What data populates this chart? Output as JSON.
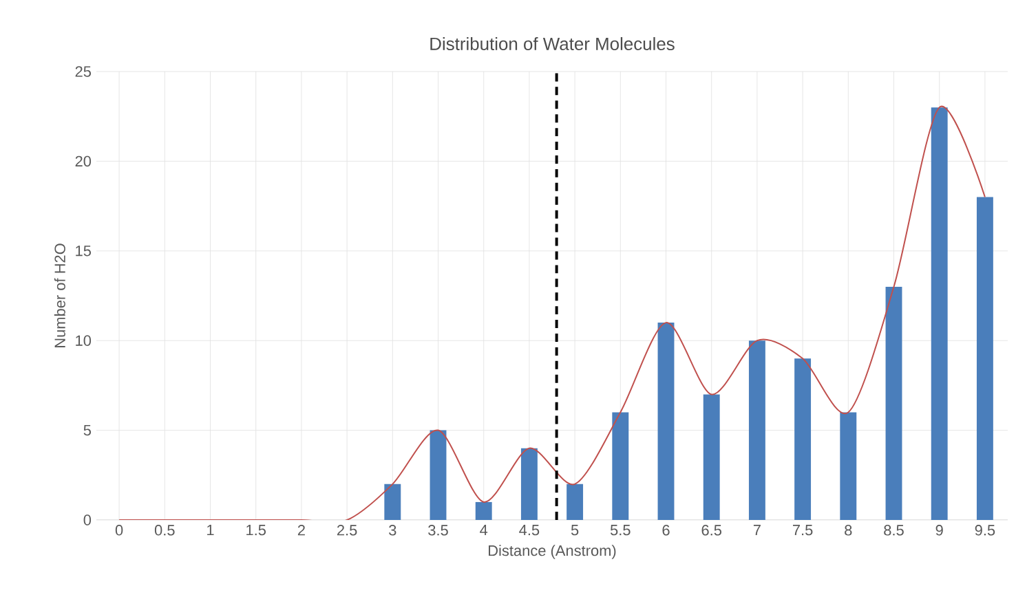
{
  "chart_data": {
    "type": "bar",
    "title": "Distribution of Water Molecules",
    "xlabel": "Distance (Anstrom)",
    "ylabel": "Number of H2O",
    "x": [
      0,
      0.5,
      1,
      1.5,
      2,
      2.5,
      3,
      3.5,
      4,
      4.5,
      5,
      5.5,
      6,
      6.5,
      7,
      7.5,
      8,
      8.5,
      9,
      9.5
    ],
    "series": [
      {
        "color": "#4a7ebb",
        "values": [
          0,
          0,
          0,
          0,
          0,
          0,
          2,
          5,
          1,
          4,
          2,
          6,
          11,
          7,
          10,
          9,
          6,
          13,
          23,
          18
        ]
      },
      {
        "type": "line",
        "color": "#c0504d",
        "values": [
          0,
          0,
          0,
          0,
          0,
          0,
          2,
          5,
          1,
          4,
          2,
          6,
          11,
          7,
          10,
          9,
          6,
          13,
          23,
          18
        ]
      }
    ],
    "xlim": [
      -0.25,
      9.75
    ],
    "xticks": [
      0,
      0.5,
      1,
      1.5,
      2,
      2.5,
      3,
      3.5,
      4,
      4.5,
      5,
      5.5,
      6,
      6.5,
      7,
      7.5,
      8,
      8.5,
      9,
      9.5
    ],
    "ylim": [
      0,
      25
    ],
    "yticks": [
      0,
      5,
      10,
      15,
      20,
      25
    ],
    "grid": true,
    "marker": "none",
    "ref_lines": [
      {
        "axis": "x",
        "value": 4.8,
        "color": "#000000",
        "line_style": "dashed"
      }
    ]
  }
}
